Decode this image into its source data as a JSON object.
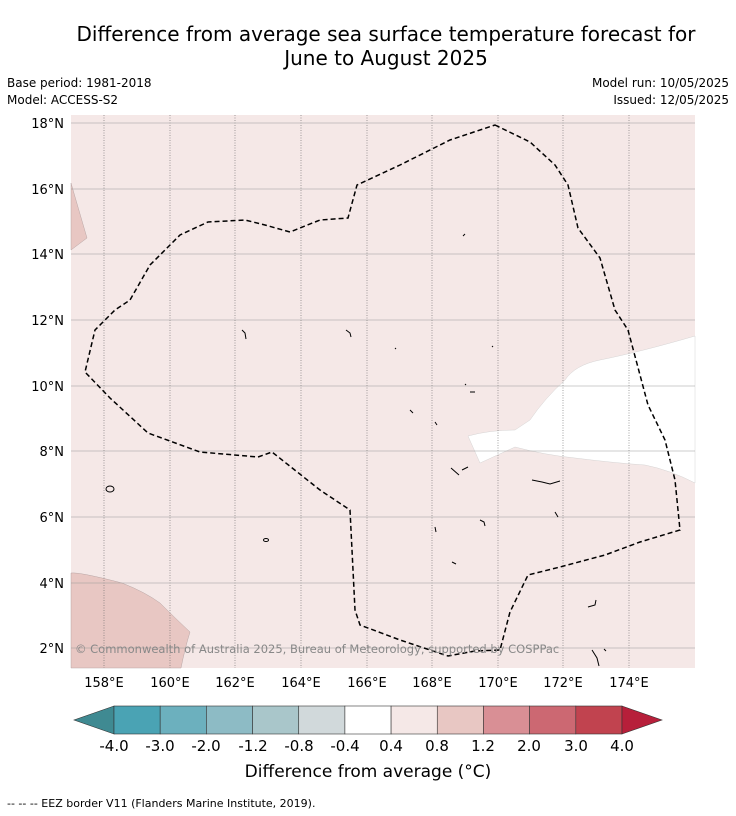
{
  "title": {
    "line1": "Difference from average sea surface temperature forecast for",
    "line2": "June to August 2025"
  },
  "meta": {
    "base_period": "Base period: 1981-2018",
    "model": "Model: ACCESS-S2",
    "model_run": "Model run: 10/05/2025",
    "issued": "Issued: 12/05/2025"
  },
  "map": {
    "lat_labels": [
      "18°N",
      "16°N",
      "14°N",
      "12°N",
      "10°N",
      "8°N",
      "6°N",
      "4°N",
      "2°N"
    ],
    "lon_labels": [
      "158°E",
      "160°E",
      "162°E",
      "164°E",
      "166°E",
      "168°E",
      "170°E",
      "172°E",
      "174°E"
    ],
    "copyright": "© Commonwealth of Australia 2025, Bureau of Meteorology, supported by COSPPac",
    "colors": {
      "anomaly_0_4_0_8": "#f5e8e7",
      "anomaly_0_8_1_2": "#e8c7c3",
      "neutral": "#ffffff"
    }
  },
  "colorbar": {
    "ticks": [
      "-4.0",
      "-3.0",
      "-2.0",
      "-1.2",
      "-0.8",
      "-0.4",
      "0.4",
      "0.8",
      "1.2",
      "2.0",
      "3.0",
      "4.0"
    ],
    "colors": [
      "#4aa3b4",
      "#6cb0be",
      "#8dbbc5",
      "#a9c6ca",
      "#d1d9db",
      "#ffffff",
      "#f5e8e7",
      "#e8c7c3",
      "#d98f95",
      "#cc6872",
      "#c1434f"
    ],
    "under_color": "#3f8a92",
    "over_color": "#b71f3a",
    "label": "Difference from average ($^\\circ$C)",
    "label_display": "Difference from average (°C)"
  },
  "footer": "--  --  -- EEZ border V11 (Flanders Marine Institute, 2019)."
}
